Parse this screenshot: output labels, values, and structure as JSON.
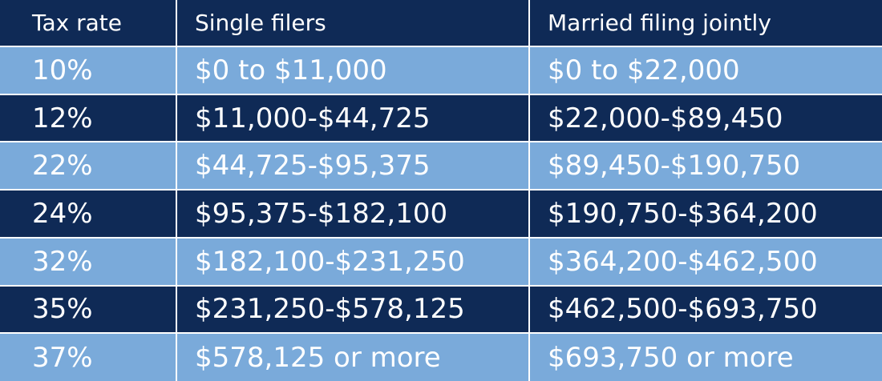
{
  "headers": [
    "Tax rate",
    "Single filers",
    "Married filing jointly"
  ],
  "rows": [
    [
      "10%",
      "$0 to $11,000",
      "$0 to $22,000"
    ],
    [
      "12%",
      "$11,000-$44,725",
      "$22,000-$89,450"
    ],
    [
      "22%",
      "$44,725-$95,375",
      "$89,450-$190,750"
    ],
    [
      "24%",
      "$95,375-$182,100",
      "$190,750-$364,200"
    ],
    [
      "32%",
      "$182,100-$231,250",
      "$364,200-$462,500"
    ],
    [
      "35%",
      "$231,250-$578,125",
      "$462,500-$693,750"
    ],
    [
      "37%",
      "$578,125 or more",
      "$693,750 or more"
    ]
  ],
  "colors": {
    "dark_row": "#0f2a56",
    "light_row": "#7aaada",
    "text": "#ffffff"
  }
}
